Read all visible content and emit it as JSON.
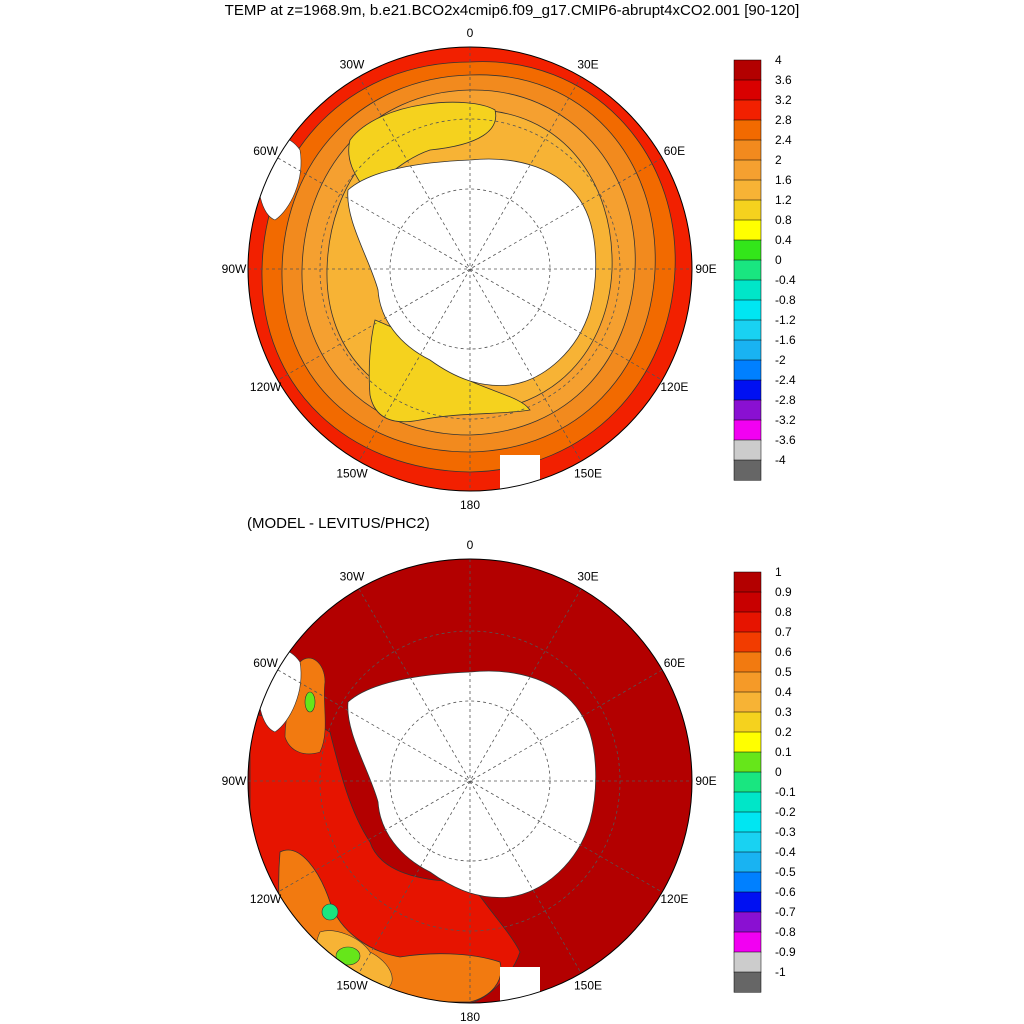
{
  "title": "TEMP at z=1968.9m, b.e21.BCO2x4cmip6.f09_g17.CMIP6-abrupt4xCO2.001 [90-120]",
  "subtitle": "(MODEL - LEVITUS/PHC2)",
  "lon_labels": [
    "0",
    "30E",
    "60E",
    "90E",
    "120E",
    "150E",
    "180",
    "150W",
    "120W",
    "90W",
    "60W",
    "30W"
  ],
  "projection": "south polar stereographic",
  "land_color": "#ffffff",
  "panels": [
    {
      "id": "top",
      "colorbar": {
        "labels": [
          "4",
          "3.6",
          "3.2",
          "2.8",
          "2.4",
          "2",
          "1.6",
          "1.2",
          "0.8",
          "0.4",
          "0",
          "-0.4",
          "-0.8",
          "-1.2",
          "-1.6",
          "-2",
          "-2.4",
          "-2.8",
          "-3.2",
          "-3.6",
          "-4"
        ],
        "colors": [
          "#b30000",
          "#d90000",
          "#f22000",
          "#f26a00",
          "#f28a1e",
          "#f5a030",
          "#f7b335",
          "#f5d21e",
          "#ffff00",
          "#33e61a",
          "#19e680",
          "#00e6c8",
          "#00e6f2",
          "#19d2f2",
          "#19b3f2",
          "#0080ff",
          "#0010f2",
          "#8a10d2",
          "#f200f2",
          "#cccccc",
          "#666666"
        ]
      },
      "field": {
        "description": "Temperature at 1968.9 m, years 90-120",
        "levels_by_distance_from_pole": [
          {
            "value_range": "1.6-2",
            "color": "#f7b335"
          },
          {
            "value_range": "2-2.4",
            "color": "#f5a030"
          },
          {
            "value_range": "2.4-2.8",
            "color": "#f28a1e"
          },
          {
            "value_range": "2.8-3.2",
            "color": "#f26a00"
          },
          {
            "value_range": "3.2-3.6",
            "color": "#f22000"
          }
        ],
        "warm_pools": [
          "Weddell Sea (1.2-1.6)",
          "Ross Sea (1.2-1.6)"
        ]
      }
    },
    {
      "id": "bottom",
      "colorbar": {
        "labels": [
          "1",
          "0.9",
          "0.8",
          "0.7",
          "0.6",
          "0.5",
          "0.4",
          "0.3",
          "0.2",
          "0.1",
          "0",
          "-0.1",
          "-0.2",
          "-0.3",
          "-0.4",
          "-0.5",
          "-0.6",
          "-0.7",
          "-0.8",
          "-0.9",
          "-1"
        ],
        "colors": [
          "#b30000",
          "#c80000",
          "#e61400",
          "#f23c00",
          "#f27a10",
          "#f59a28",
          "#f7b335",
          "#f5d21e",
          "#ffff00",
          "#66e61a",
          "#19e680",
          "#00e6c8",
          "#00e6f2",
          "#19d2f2",
          "#19b3f2",
          "#0080ff",
          "#0010f2",
          "#8a10d2",
          "#f200f2",
          "#cccccc",
          "#666666"
        ]
      },
      "field": {
        "description": "Model minus Levitus/PHC2 temperature difference",
        "dominant": {
          "value_range": ">0.9",
          "color": "#b30000"
        },
        "pacific_sector": {
          "value_range": "0.5-0.9",
          "color": "#e61400"
        }
      }
    }
  ]
}
